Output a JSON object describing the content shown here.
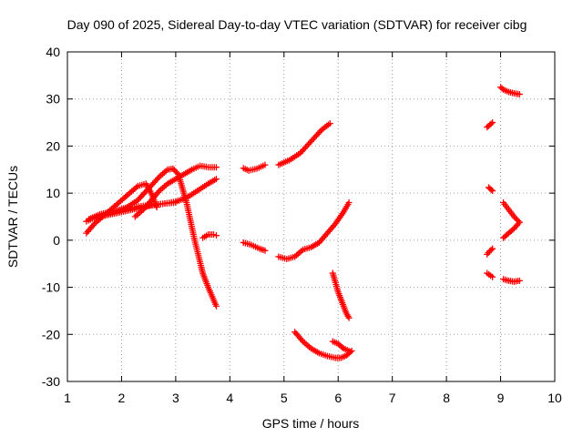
{
  "chart_data": {
    "type": "scatter",
    "title": "Day 090 of 2025, Sidereal Day-to-day VTEC variation (SDTVAR) for receiver cibg",
    "xlabel": "GPS time / hours",
    "ylabel": "SDTVAR / TECUs",
    "xlim": [
      1,
      10
    ],
    "ylim": [
      -30,
      40
    ],
    "xticks": [
      1,
      2,
      3,
      4,
      5,
      6,
      7,
      8,
      9,
      10
    ],
    "yticks": [
      -30,
      -20,
      -10,
      0,
      10,
      20,
      30,
      40
    ],
    "grid": true,
    "marker": "plus",
    "color": "#ff0000",
    "series": [
      {
        "x": [
          1.35,
          1.5,
          1.7,
          1.9,
          2.1,
          2.3,
          2.45,
          2.55,
          2.65
        ],
        "y": [
          1.5,
          3.5,
          5.5,
          7.5,
          9.5,
          11.5,
          12.0,
          10.0,
          7.0
        ]
      },
      {
        "x": [
          1.35,
          1.5,
          1.7,
          1.9,
          2.1,
          2.3,
          2.5,
          2.7,
          2.85,
          2.95,
          3.05,
          3.2,
          3.35,
          3.5,
          3.6,
          3.75
        ],
        "y": [
          4.0,
          4.8,
          5.5,
          6.2,
          7.0,
          8.5,
          11.0,
          13.5,
          15.0,
          15.2,
          14.0,
          8.0,
          0.0,
          -7.0,
          -10.0,
          -14.0
        ]
      },
      {
        "x": [
          1.4,
          1.6,
          1.8,
          2.0,
          2.2,
          2.4,
          2.6,
          2.8,
          3.0,
          3.2,
          3.4,
          3.6,
          3.75
        ],
        "y": [
          4.5,
          5.5,
          6.0,
          6.5,
          7.0,
          7.3,
          7.5,
          7.8,
          8.2,
          9.0,
          10.5,
          12.0,
          13.0
        ]
      },
      {
        "x": [
          1.6,
          1.8,
          2.0,
          2.2,
          2.4,
          2.6,
          2.8,
          3.0
        ],
        "y": [
          5.0,
          5.5,
          6.0,
          6.5,
          7.0,
          7.5,
          7.8,
          8.0
        ]
      },
      {
        "x": [
          2.25,
          2.4,
          2.55,
          2.7,
          2.85,
          3.0,
          3.15,
          3.3,
          3.45,
          3.6,
          3.75
        ],
        "y": [
          5.0,
          6.5,
          8.5,
          10.5,
          12.0,
          13.0,
          14.0,
          15.0,
          15.8,
          15.5,
          15.5
        ]
      },
      {
        "x": [
          3.5,
          3.6,
          3.7,
          3.75
        ],
        "y": [
          0.5,
          1.2,
          1.2,
          1.0
        ]
      },
      {
        "x": [
          4.25,
          4.35,
          4.5,
          4.65
        ],
        "y": [
          15.3,
          14.8,
          15.2,
          16.0
        ]
      },
      {
        "x": [
          4.9,
          5.1,
          5.3,
          5.5,
          5.7,
          5.85
        ],
        "y": [
          16.0,
          17.0,
          18.5,
          21.0,
          23.5,
          24.8
        ]
      },
      {
        "x": [
          4.25,
          4.4,
          4.55,
          4.65
        ],
        "y": [
          -0.5,
          -1.0,
          -1.8,
          -2.2
        ]
      },
      {
        "x": [
          4.9,
          5.05,
          5.2,
          5.35,
          5.5,
          5.65,
          5.8,
          5.95,
          6.1,
          6.2
        ],
        "y": [
          -3.5,
          -4.0,
          -3.5,
          -2.0,
          -1.5,
          -0.5,
          1.5,
          3.5,
          6.0,
          8.0
        ]
      },
      {
        "x": [
          5.2,
          5.35,
          5.5,
          5.65,
          5.8,
          5.95,
          6.05,
          6.15,
          6.25
        ],
        "y": [
          -19.5,
          -21.5,
          -23.0,
          -24.0,
          -24.6,
          -25.0,
          -25.0,
          -24.5,
          -23.5
        ]
      },
      {
        "x": [
          5.9,
          6.0,
          6.1,
          6.2
        ],
        "y": [
          -21.5,
          -22.0,
          -23.0,
          -23.5
        ]
      },
      {
        "x": [
          5.9,
          5.95,
          6.0,
          6.05,
          6.1,
          6.15,
          6.2
        ],
        "y": [
          -7.0,
          -9.0,
          -11.0,
          -12.5,
          -14.0,
          -15.5,
          -16.5
        ]
      },
      {
        "x": [
          8.75,
          8.8,
          8.85
        ],
        "y": [
          24.0,
          24.5,
          25.0
        ]
      },
      {
        "x": [
          8.78,
          8.85
        ],
        "y": [
          11.2,
          10.5
        ]
      },
      {
        "x": [
          8.75,
          8.8,
          8.85
        ],
        "y": [
          -3.0,
          -2.3,
          -1.8
        ]
      },
      {
        "x": [
          8.75,
          8.85
        ],
        "y": [
          -7.0,
          -7.8
        ]
      },
      {
        "x": [
          9.0,
          9.05,
          9.15,
          9.25,
          9.35
        ],
        "y": [
          32.5,
          32.0,
          31.5,
          31.2,
          31.0
        ]
      },
      {
        "x": [
          9.05,
          9.15,
          9.25,
          9.35,
          9.25,
          9.15,
          9.05
        ],
        "y": [
          8.0,
          6.5,
          5.0,
          3.8,
          2.5,
          1.5,
          0.5
        ]
      },
      {
        "x": [
          9.05,
          9.15,
          9.25,
          9.35
        ],
        "y": [
          -8.3,
          -8.6,
          -8.8,
          -8.6
        ]
      }
    ]
  }
}
